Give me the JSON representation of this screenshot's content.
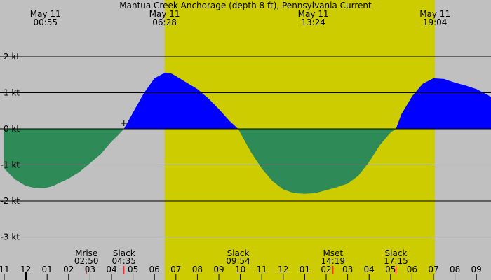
{
  "chart_data": {
    "type": "area",
    "title": "Mantua Creek Anchorage (depth 8 ft), Pennsylvania Current",
    "ylabel": "",
    "xlabel": "",
    "ylim": [
      -3.3,
      2.5
    ],
    "yticks": [
      2,
      1,
      0,
      -1,
      -2,
      -3
    ],
    "ytick_labels": [
      "2 kt",
      "1 kt",
      "0 kt",
      "-1 kt",
      "-2 kt",
      "-3 kt"
    ],
    "x_unit": "hours after midnight, May 11",
    "xlim": [
      -1.0,
      22.0
    ],
    "xtick_labels": [
      "11",
      "12",
      "01",
      "02",
      "03",
      "04",
      "05",
      "06",
      "07",
      "08",
      "09",
      "10",
      "11",
      "12",
      "01",
      "02",
      "03",
      "04",
      "05",
      "06",
      "07",
      "08",
      "09"
    ],
    "xtick_start": -1,
    "daylight": [
      6.47,
      19.07
    ],
    "colors": {
      "background": "#c0c0c0",
      "daylight": "#cccc00",
      "flood": "#0000ff",
      "ebb": "#2e8b57",
      "grid": "#000000"
    },
    "top_labels": [
      {
        "date": "May 11",
        "time": "00:55",
        "hour": 0.92
      },
      {
        "date": "May 11",
        "time": "06:28",
        "hour": 6.47
      },
      {
        "date": "May 11",
        "time": "13:24",
        "hour": 13.4
      },
      {
        "date": "May 11",
        "time": "19:04",
        "hour": 19.07
      }
    ],
    "events": [
      {
        "name": "Mrise",
        "time": "02:50",
        "hour": 2.83
      },
      {
        "name": "Slack",
        "time": "04:35",
        "hour": 4.58
      },
      {
        "name": "Slack",
        "time": "09:54",
        "hour": 9.9
      },
      {
        "name": "Mset",
        "time": "14:19",
        "hour": 14.32
      },
      {
        "name": "Slack",
        "time": "17:15",
        "hour": 17.25
      }
    ],
    "series": [
      {
        "x": [
          -1.0,
          -0.5,
          0.0,
          0.5,
          1.0,
          1.3,
          1.5,
          2.0,
          2.5,
          3.0,
          3.5,
          4.0,
          4.3,
          4.58,
          5.0,
          5.5,
          6.0,
          6.5,
          6.8,
          7.0,
          7.5,
          8.0,
          8.5,
          9.0,
          9.5,
          9.9,
          10.5,
          11.0,
          11.5,
          12.0,
          12.5,
          13.0,
          13.5,
          14.0,
          14.5,
          15.0,
          15.5,
          16.0,
          16.5,
          17.0,
          17.25,
          17.5,
          18.0,
          18.5,
          19.0,
          19.5,
          20.0,
          20.5,
          21.0,
          21.5,
          22.0
        ],
        "y": [
          -1.1,
          -1.4,
          -1.58,
          -1.65,
          -1.63,
          -1.58,
          -1.52,
          -1.38,
          -1.2,
          -0.95,
          -0.7,
          -0.35,
          -0.18,
          0.0,
          0.45,
          0.98,
          1.4,
          1.56,
          1.53,
          1.46,
          1.28,
          1.1,
          0.85,
          0.55,
          0.22,
          0.0,
          -0.65,
          -1.1,
          -1.45,
          -1.68,
          -1.78,
          -1.8,
          -1.78,
          -1.7,
          -1.62,
          -1.52,
          -1.3,
          -0.92,
          -0.45,
          -0.1,
          0.0,
          0.4,
          0.9,
          1.25,
          1.4,
          1.38,
          1.28,
          1.2,
          1.1,
          0.95,
          0.75
        ]
      }
    ]
  }
}
